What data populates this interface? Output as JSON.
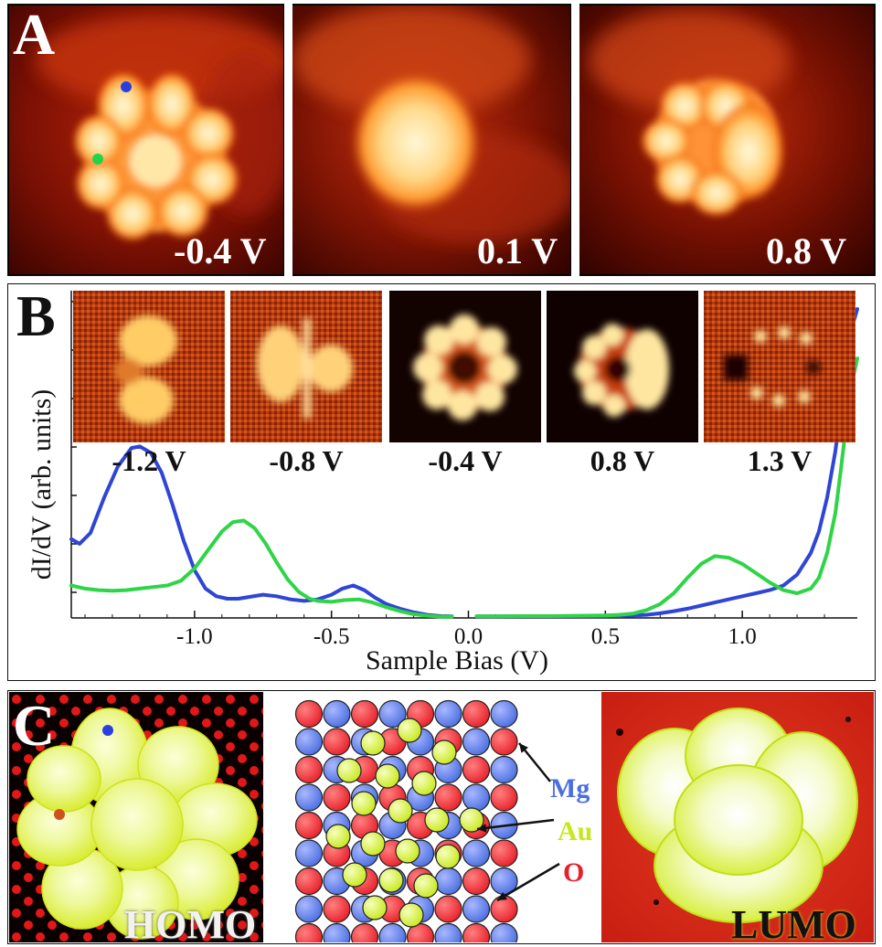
{
  "panel_a": {
    "letter": "A",
    "images": [
      {
        "bias": "-0.4 V",
        "content": "flower-shaped STM topograph with blue and green measurement points"
      },
      {
        "bias": "0.1 V",
        "content": "round bright blob"
      },
      {
        "bias": "0.8 V",
        "content": "lobed STM topograph"
      }
    ]
  },
  "panel_b": {
    "letter": "B",
    "insets": [
      {
        "bias": "-1.2 V"
      },
      {
        "bias": "-0.8 V"
      },
      {
        "bias": "-0.4 V"
      },
      {
        "bias": "0.8 V"
      },
      {
        "bias": "1.3 V"
      }
    ]
  },
  "chart_data": {
    "type": "line",
    "xlabel": "Sample Bias (V)",
    "ylabel": "dI/dV (arb. units)",
    "xlim": [
      -1.45,
      1.42
    ],
    "ylim": [
      0,
      10
    ],
    "x_ticks": [
      -1.0,
      -0.5,
      0.0,
      0.5,
      1.0
    ],
    "x_tick_labels": [
      "-1.0",
      "-0.5",
      "0.0",
      "0.5",
      "1.0"
    ],
    "grid": false,
    "series": [
      {
        "color": "#2f45d6",
        "segments": [
          {
            "x": [
              -1.45,
              -1.42,
              -1.38,
              -1.33,
              -1.28,
              -1.23,
              -1.2,
              -1.16,
              -1.12,
              -1.08,
              -1.04,
              -1.0,
              -0.96,
              -0.92,
              -0.88,
              -0.84,
              -0.8,
              -0.75,
              -0.7,
              -0.65,
              -0.6,
              -0.55,
              -0.5,
              -0.46,
              -0.42,
              -0.38,
              -0.34,
              -0.3,
              -0.25,
              -0.2,
              -0.15,
              -0.1,
              -0.06
            ],
            "y": [
              2.55,
              2.4,
              2.75,
              3.9,
              4.9,
              5.5,
              5.55,
              5.35,
              4.7,
              3.65,
              2.5,
              1.55,
              0.95,
              0.7,
              0.62,
              0.62,
              0.68,
              0.75,
              0.7,
              0.6,
              0.55,
              0.6,
              0.75,
              0.95,
              1.05,
              0.9,
              0.65,
              0.45,
              0.3,
              0.18,
              0.1,
              0.06,
              0.05
            ]
          },
          {
            "x": [
              0.03,
              0.1,
              0.2,
              0.3,
              0.4,
              0.5,
              0.55,
              0.6,
              0.65,
              0.7,
              0.75,
              0.8,
              0.85,
              0.9,
              0.95,
              1.0,
              1.05,
              1.1,
              1.15,
              1.2,
              1.25,
              1.28,
              1.31,
              1.34,
              1.36,
              1.38,
              1.4,
              1.42
            ],
            "y": [
              0.05,
              0.05,
              0.05,
              0.05,
              0.05,
              0.05,
              0.06,
              0.08,
              0.1,
              0.15,
              0.22,
              0.3,
              0.4,
              0.5,
              0.6,
              0.7,
              0.8,
              0.9,
              1.05,
              1.4,
              2.1,
              2.8,
              3.9,
              5.4,
              6.8,
              8.2,
              9.4,
              10.0
            ]
          }
        ]
      },
      {
        "color": "#2fd447",
        "segments": [
          {
            "x": [
              -1.45,
              -1.4,
              -1.35,
              -1.3,
              -1.25,
              -1.2,
              -1.15,
              -1.1,
              -1.05,
              -1.0,
              -0.95,
              -0.9,
              -0.86,
              -0.82,
              -0.78,
              -0.74,
              -0.7,
              -0.66,
              -0.62,
              -0.58,
              -0.55,
              -0.5,
              -0.45,
              -0.4,
              -0.35,
              -0.3,
              -0.25,
              -0.2,
              -0.15,
              -0.1,
              -0.06
            ],
            "y": [
              1.05,
              0.95,
              0.9,
              0.88,
              0.9,
              0.95,
              1.0,
              1.05,
              1.2,
              1.6,
              2.2,
              2.8,
              3.1,
              3.15,
              2.9,
              2.4,
              1.8,
              1.25,
              0.85,
              0.62,
              0.55,
              0.52,
              0.58,
              0.6,
              0.5,
              0.35,
              0.22,
              0.12,
              0.07,
              0.04,
              0.04
            ]
          },
          {
            "x": [
              0.03,
              0.1,
              0.2,
              0.3,
              0.4,
              0.5,
              0.55,
              0.6,
              0.65,
              0.7,
              0.75,
              0.8,
              0.85,
              0.9,
              0.95,
              1.0,
              1.05,
              1.1,
              1.15,
              1.2,
              1.25,
              1.28,
              1.31,
              1.34,
              1.36,
              1.38,
              1.4,
              1.42
            ],
            "y": [
              0.05,
              0.05,
              0.06,
              0.06,
              0.07,
              0.08,
              0.1,
              0.14,
              0.25,
              0.45,
              0.8,
              1.3,
              1.75,
              2.0,
              1.95,
              1.75,
              1.45,
              1.15,
              0.9,
              0.8,
              0.95,
              1.3,
              2.1,
              3.4,
              4.8,
              6.3,
              7.6,
              8.4
            ]
          }
        ]
      }
    ]
  },
  "panel_c": {
    "letter": "C",
    "homo_label": "HOMO",
    "lumo_label": "LUMO",
    "legend": [
      {
        "symbol": "Mg",
        "color": "#4a6fe0"
      },
      {
        "symbol": "Au",
        "color": "#c8e81a"
      },
      {
        "symbol": "O",
        "color": "#e8202a"
      }
    ]
  }
}
